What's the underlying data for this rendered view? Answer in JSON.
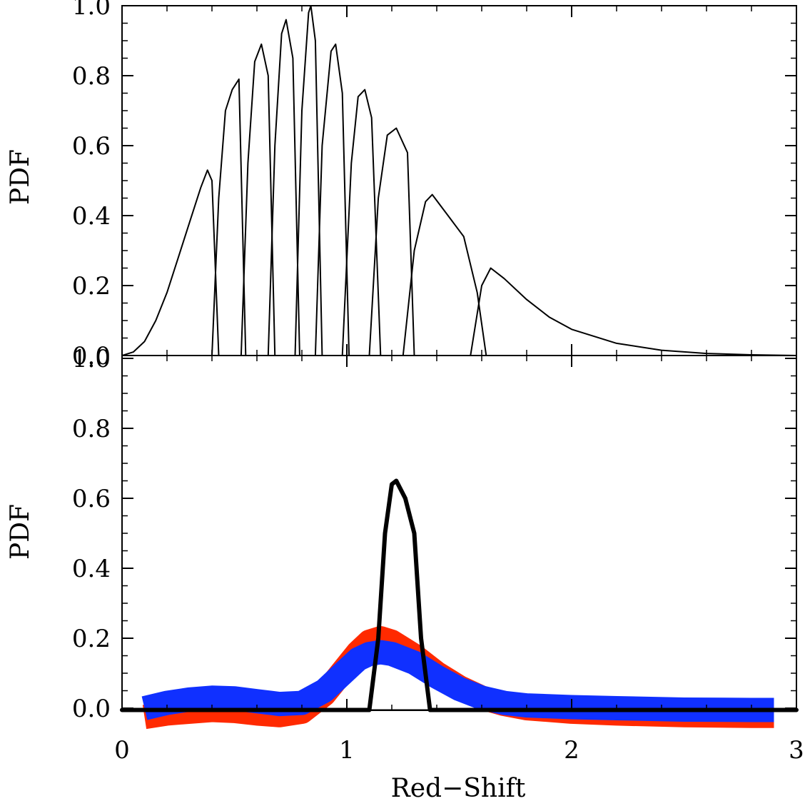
{
  "chart_data": [
    {
      "type": "line",
      "panel": "top",
      "xlabel": "",
      "ylabel": "PDF",
      "xlim": [
        0,
        3
      ],
      "ylim": [
        0,
        1.0
      ],
      "yticks": [
        "0.0",
        "0.2",
        "0.4",
        "0.6",
        "0.8",
        "1.0"
      ],
      "line_color": "#000000",
      "series": [
        {
          "x": [
            0.0,
            0.05,
            0.1,
            0.15,
            0.2,
            0.25,
            0.3,
            0.35,
            0.38,
            0.4,
            0.43
          ],
          "values": [
            0.0,
            0.01,
            0.04,
            0.1,
            0.18,
            0.28,
            0.38,
            0.48,
            0.53,
            0.5,
            0.0
          ]
        },
        {
          "x": [
            0.4,
            0.43,
            0.46,
            0.49,
            0.52,
            0.55
          ],
          "values": [
            0.0,
            0.45,
            0.7,
            0.76,
            0.79,
            0.0
          ]
        },
        {
          "x": [
            0.53,
            0.56,
            0.59,
            0.62,
            0.65,
            0.68
          ],
          "values": [
            0.0,
            0.55,
            0.84,
            0.89,
            0.8,
            0.0
          ]
        },
        {
          "x": [
            0.65,
            0.68,
            0.71,
            0.73,
            0.76,
            0.79
          ],
          "values": [
            0.0,
            0.6,
            0.92,
            0.96,
            0.85,
            0.0
          ]
        },
        {
          "x": [
            0.77,
            0.8,
            0.83,
            0.84,
            0.86,
            0.89
          ],
          "values": [
            0.0,
            0.7,
            0.98,
            1.0,
            0.9,
            0.0
          ]
        },
        {
          "x": [
            0.86,
            0.89,
            0.93,
            0.95,
            0.98,
            1.01
          ],
          "values": [
            0.0,
            0.6,
            0.87,
            0.89,
            0.75,
            0.0
          ]
        },
        {
          "x": [
            0.98,
            1.02,
            1.05,
            1.08,
            1.11,
            1.15
          ],
          "values": [
            0.0,
            0.55,
            0.74,
            0.76,
            0.68,
            0.0
          ]
        },
        {
          "x": [
            1.1,
            1.14,
            1.18,
            1.22,
            1.27,
            1.3
          ],
          "values": [
            0.0,
            0.45,
            0.63,
            0.65,
            0.58,
            0.0
          ]
        },
        {
          "x": [
            1.25,
            1.3,
            1.35,
            1.38,
            1.45,
            1.52,
            1.58,
            1.62
          ],
          "values": [
            0.0,
            0.3,
            0.44,
            0.46,
            0.4,
            0.34,
            0.18,
            0.0
          ]
        },
        {
          "x": [
            1.55,
            1.6,
            1.64,
            1.7,
            1.8,
            1.9,
            2.0,
            2.2,
            2.4,
            2.6,
            2.8,
            3.0
          ],
          "values": [
            0.0,
            0.2,
            0.25,
            0.22,
            0.16,
            0.11,
            0.075,
            0.035,
            0.015,
            0.006,
            0.002,
            0.0
          ]
        }
      ]
    },
    {
      "type": "line",
      "panel": "bottom",
      "xlabel": "Red−Shift",
      "ylabel": "PDF",
      "xlim": [
        0,
        3
      ],
      "ylim": [
        -0.04,
        1.0
      ],
      "xticks": [
        "0",
        "1",
        "2",
        "3"
      ],
      "yticks": [
        "0.0",
        "0.2",
        "0.4",
        "0.6",
        "0.8",
        "1.0"
      ],
      "series": [
        {
          "color": "#ff2a00",
          "style": "thick",
          "x": [
            0.1,
            0.2,
            0.3,
            0.4,
            0.5,
            0.6,
            0.7,
            0.8,
            0.9,
            1.0,
            1.05,
            1.1,
            1.15,
            1.2,
            1.3,
            1.4,
            1.5,
            1.6,
            1.7,
            1.8,
            2.0,
            2.2,
            2.5,
            2.8,
            2.9
          ],
          "values": [
            -0.025,
            -0.015,
            -0.01,
            -0.005,
            -0.008,
            -0.015,
            -0.02,
            -0.01,
            0.04,
            0.12,
            0.16,
            0.19,
            0.2,
            0.19,
            0.15,
            0.1,
            0.06,
            0.03,
            0.012,
            0.0,
            -0.01,
            -0.015,
            -0.02,
            -0.022,
            -0.022
          ]
        },
        {
          "color": "#1030ff",
          "style": "thick",
          "x": [
            0.1,
            0.2,
            0.3,
            0.4,
            0.5,
            0.6,
            0.7,
            0.8,
            0.9,
            1.0,
            1.05,
            1.1,
            1.15,
            1.2,
            1.3,
            1.4,
            1.5,
            1.6,
            1.7,
            1.8,
            2.0,
            2.2,
            2.5,
            2.8,
            2.9
          ],
          "values": [
            0.0,
            0.015,
            0.025,
            0.03,
            0.028,
            0.02,
            0.012,
            0.015,
            0.05,
            0.11,
            0.14,
            0.155,
            0.16,
            0.155,
            0.13,
            0.09,
            0.055,
            0.03,
            0.015,
            0.008,
            0.003,
            0.0,
            -0.004,
            -0.005,
            -0.005
          ]
        },
        {
          "color": "#000000",
          "style": "medium",
          "x": [
            0.0,
            1.1,
            1.14,
            1.17,
            1.2,
            1.22,
            1.26,
            1.3,
            1.33,
            1.37,
            3.0
          ],
          "values": [
            -0.005,
            -0.005,
            0.2,
            0.5,
            0.64,
            0.65,
            0.6,
            0.5,
            0.2,
            -0.005,
            -0.005
          ]
        }
      ],
      "baseline": {
        "value": -0.005,
        "color": "#000000"
      }
    }
  ]
}
